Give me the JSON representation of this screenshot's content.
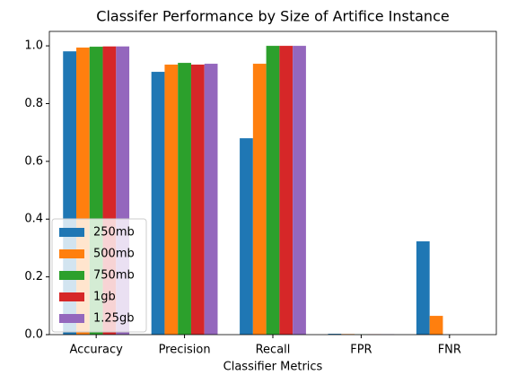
{
  "chart_data": {
    "type": "bar",
    "title": "Classifer Performance by Size of Artifice Instance",
    "x_label": "Classifier Metrics",
    "categories": [
      "Accuracy",
      "Precision",
      "Recall",
      "FPR",
      "FNR"
    ],
    "series": [
      {
        "name": "250mb",
        "color": "#1f77b4",
        "values": [
          0.981,
          0.91,
          0.68,
          0.003,
          0.323
        ]
      },
      {
        "name": "500mb",
        "color": "#ff7f0e",
        "values": [
          0.994,
          0.935,
          0.938,
          0.002,
          0.065
        ]
      },
      {
        "name": "750mb",
        "color": "#2ca02c",
        "values": [
          0.997,
          0.941,
          1.0,
          0.001,
          0.0
        ]
      },
      {
        "name": "1gb",
        "color": "#d62728",
        "values": [
          0.998,
          0.935,
          1.0,
          0.001,
          0.0
        ]
      },
      {
        "name": "1.25gb",
        "color": "#9467bd",
        "values": [
          0.998,
          0.938,
          1.0,
          0.001,
          0.0
        ]
      }
    ],
    "ylim": [
      0,
      1.05
    ],
    "yticks": [
      {
        "value": 0,
        "label": "0.0"
      },
      0.2,
      0.4,
      0.6,
      0.8,
      {
        "value": 1,
        "label": "1.0"
      }
    ],
    "legend": "lower left"
  }
}
